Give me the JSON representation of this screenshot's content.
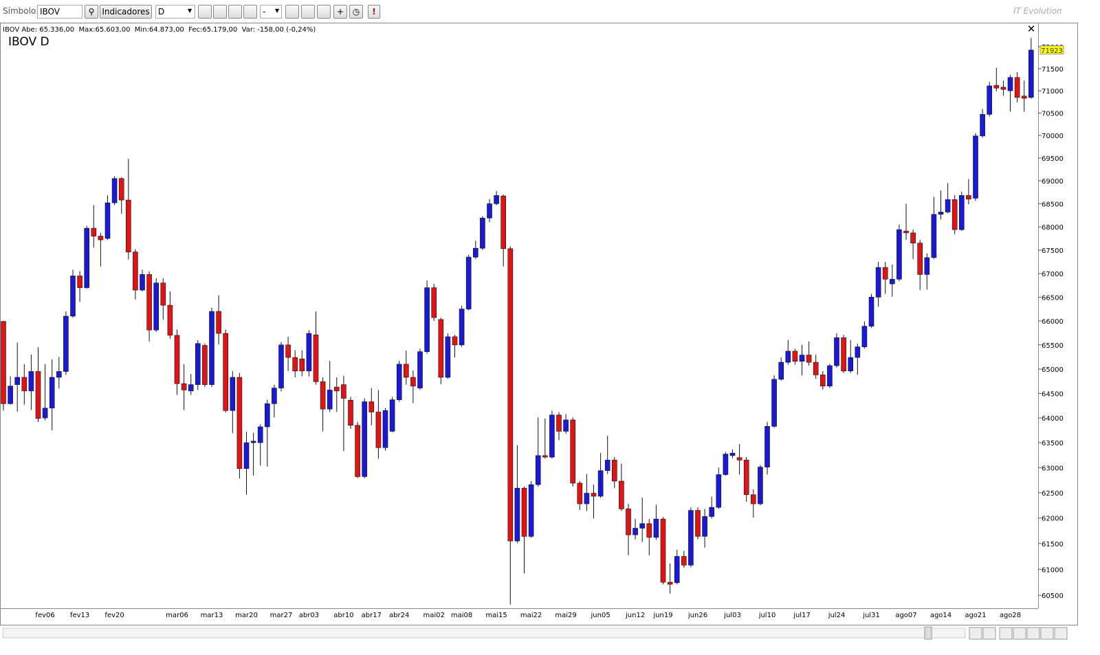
{
  "toolbar": {
    "symbol_label": "Símbolo:",
    "symbol": "IBOV",
    "indicators": "Indicadores",
    "period": "D",
    "option": "-",
    "alert": "!",
    "brand": "IT Evolution"
  },
  "chart_data": {
    "type": "candlestick",
    "title": "IBOV D",
    "info": "IBOV Abe: 65.336,00  Max:65.603,00  Min:64.873,00  Fec:65.179,00  Var: -158,00 (-0,24%)",
    "log_scale": true,
    "grid": false,
    "up_color": "#1a1ad6",
    "down_color": "#e01414",
    "ylim": [
      60250,
      72550
    ],
    "yticks": [
      60500,
      61000,
      61500,
      62000,
      62500,
      63000,
      63500,
      64000,
      64500,
      65000,
      65500,
      66000,
      66500,
      67000,
      67500,
      68000,
      68500,
      69000,
      69500,
      70000,
      70500,
      71000,
      71500,
      72000
    ],
    "categories": [
      null,
      null,
      null,
      null,
      null,
      null,
      "fev06",
      null,
      null,
      null,
      null,
      "fev13",
      null,
      null,
      null,
      null,
      "fev20",
      null,
      null,
      null,
      null,
      null,
      null,
      null,
      null,
      "mar06",
      null,
      null,
      null,
      null,
      "mar13",
      null,
      null,
      null,
      null,
      "mar20",
      null,
      null,
      null,
      null,
      "mar27",
      null,
      null,
      null,
      "abr03",
      null,
      null,
      null,
      null,
      "abr10",
      null,
      null,
      null,
      "abr17",
      null,
      null,
      null,
      "abr24",
      null,
      null,
      null,
      null,
      "mai02",
      null,
      null,
      null,
      "mai08",
      null,
      null,
      null,
      null,
      "mai15",
      null,
      null,
      null,
      null,
      "mai22",
      null,
      null,
      null,
      null,
      "mai29",
      null,
      null,
      null,
      null,
      "jun05",
      null,
      null,
      null,
      null,
      "jun12",
      null,
      null,
      null,
      "jun19",
      null,
      null,
      null,
      null,
      "jun26",
      null,
      null,
      null,
      null,
      "jul03",
      null,
      null,
      null,
      null,
      "jul10",
      null,
      null,
      null,
      null,
      "jul17",
      null,
      null,
      null,
      null,
      "jul24",
      null,
      null,
      null,
      null,
      "jul31",
      null,
      null,
      null,
      null,
      "ago07",
      null,
      null,
      null,
      null,
      "ago14",
      null,
      null,
      null,
      null,
      "ago21",
      null,
      null,
      null,
      null,
      "ago28",
      null,
      null,
      null
    ],
    "open": [
      65990,
      64290,
      64680,
      64830,
      64550,
      64950,
      64000,
      64200,
      64830,
      64950,
      66100,
      66950,
      66700,
      67970,
      67800,
      67750,
      68520,
      69050,
      68580,
      67460,
      66650,
      66980,
      65810,
      66800,
      66330,
      65700,
      64700,
      64550,
      64680,
      65490,
      64680,
      66200,
      65740,
      64150,
      64830,
      62980,
      63500,
      63500,
      63820,
      64290,
      64610,
      65500,
      65240,
      65210,
      64960,
      65710,
      64740,
      64180,
      64630,
      64680,
      64360,
      63850,
      62820,
      64330,
      64120,
      63400,
      63730,
      64370,
      65100,
      64830,
      64610,
      65360,
      66700,
      66030,
      64830,
      65670,
      65500,
      66250,
      67350,
      67540,
      68190,
      68500,
      68670,
      67530,
      61550,
      62590,
      61640,
      62660,
      63240,
      63210,
      64060,
      63730,
      63960,
      62690,
      62280,
      62490,
      62430,
      62940,
      63150,
      62730,
      62180,
      61670,
      61800,
      61890,
      61620,
      61980,
      60750,
      60740,
      61250,
      61080,
      62150,
      61640,
      62030,
      62210,
      62860,
      63240,
      63200,
      63150,
      62460,
      62280,
      63010,
      63830,
      64790,
      65140,
      65370,
      65160,
      65290,
      65140,
      64880,
      64650,
      65070,
      65650,
      64960,
      65240,
      65460,
      65890,
      66500,
      67130,
      66780,
      66880,
      67910,
      67870,
      67650,
      66980,
      67340,
      68270,
      68320,
      68590,
      67940,
      68680,
      68620,
      69990,
      70470,
      71120,
      71080,
      71000,
      71300,
      70880,
      70850
    ],
    "high": [
      66000,
      64850,
      65550,
      65100,
      65300,
      65450,
      65100,
      65200,
      65250,
      66200,
      67080,
      67050,
      68020,
      68470,
      67870,
      68680,
      69100,
      69080,
      69480,
      67520,
      67080,
      67050,
      66900,
      66900,
      66620,
      65820,
      65100,
      64900,
      65600,
      65530,
      66280,
      66540,
      65820,
      64960,
      64920,
      63720,
      63700,
      63870,
      64370,
      64680,
      65560,
      65670,
      65390,
      65390,
      65810,
      66200,
      64830,
      65170,
      64830,
      64860,
      64430,
      63920,
      64400,
      64610,
      64570,
      64200,
      64430,
      65170,
      65380,
      64970,
      65420,
      66850,
      66780,
      66070,
      65740,
      65710,
      66320,
      67400,
      67700,
      68230,
      68600,
      68780,
      68700,
      67580,
      63450,
      62620,
      62730,
      64010,
      63990,
      64150,
      64120,
      64080,
      64010,
      62730,
      62870,
      62660,
      63290,
      63640,
      63210,
      63080,
      62280,
      61980,
      62400,
      61980,
      62260,
      62020,
      61110,
      61380,
      61360,
      62210,
      62210,
      62180,
      62420,
      63000,
      63310,
      63360,
      63470,
      63210,
      62570,
      63050,
      63920,
      64870,
      65240,
      65600,
      65420,
      65500,
      65570,
      65300,
      64960,
      65110,
      65740,
      65710,
      65600,
      65530,
      65990,
      66570,
      67250,
      67250,
      67190,
      68050,
      68500,
      67940,
      67720,
      67430,
      68650,
      68790,
      68950,
      68690,
      68760,
      69040,
      70050,
      70590,
      71200,
      71520,
      71230,
      71360,
      71420,
      71230,
      72200
    ],
    "low": [
      64150,
      64270,
      64130,
      64270,
      64160,
      63920,
      63950,
      63750,
      64600,
      64880,
      66070,
      66400,
      66680,
      67550,
      67150,
      67720,
      68470,
      68280,
      67300,
      66450,
      66620,
      65570,
      65770,
      66030,
      65630,
      64470,
      64160,
      64470,
      64570,
      64630,
      64630,
      65510,
      64110,
      63690,
      62780,
      62460,
      62840,
      63040,
      63020,
      64010,
      64540,
      64960,
      64830,
      64850,
      64850,
      64680,
      63730,
      64120,
      64120,
      63330,
      63780,
      62790,
      62790,
      63850,
      63180,
      63340,
      63710,
      64330,
      64680,
      64300,
      64570,
      65320,
      66000,
      64690,
      64800,
      65240,
      65460,
      66220,
      67310,
      67500,
      68100,
      68470,
      67150,
      60320,
      61510,
      60920,
      61610,
      62620,
      63180,
      63180,
      63550,
      63680,
      62620,
      62160,
      62140,
      61990,
      62400,
      62870,
      62590,
      62140,
      61270,
      61580,
      61530,
      61270,
      61570,
      60710,
      60530,
      60710,
      61030,
      61040,
      61580,
      61420,
      61990,
      62180,
      62840,
      63190,
      62860,
      62320,
      62010,
      62250,
      62860,
      63800,
      64760,
      65090,
      65090,
      64870,
      65070,
      64800,
      64580,
      64610,
      65030,
      64920,
      64920,
      64880,
      65420,
      65860,
      66300,
      66570,
      66510,
      66840,
      67720,
      67310,
      66650,
      66660,
      67310,
      68160,
      68290,
      67840,
      67910,
      68490,
      68560,
      69950,
      70420,
      70990,
      70890,
      70530,
      70740,
      70530,
      70820
    ],
    "close": [
      64290,
      64650,
      64830,
      64550,
      64950,
      63990,
      64200,
      64830,
      64950,
      66100,
      66950,
      66700,
      67970,
      67800,
      67720,
      68520,
      69050,
      68580,
      67460,
      66650,
      66980,
      65810,
      66800,
      66330,
      65700,
      64700,
      64570,
      64680,
      65530,
      64680,
      66200,
      65740,
      64150,
      64830,
      62980,
      63500,
      63530,
      63820,
      64290,
      64610,
      65500,
      65240,
      64960,
      64960,
      65740,
      64740,
      64180,
      64570,
      64550,
      64400,
      63850,
      62820,
      64330,
      64120,
      63400,
      64150,
      64370,
      65100,
      64830,
      64650,
      65360,
      66700,
      66070,
      64830,
      65670,
      65500,
      66250,
      67350,
      67540,
      68190,
      68500,
      68680,
      67530,
      61550,
      62590,
      61640,
      62660,
      63240,
      63210,
      64060,
      63730,
      63960,
      62690,
      62280,
      62490,
      62430,
      62940,
      63150,
      62730,
      62180,
      61670,
      61800,
      61890,
      61620,
      61980,
      60750,
      60710,
      61250,
      61080,
      62150,
      61640,
      62030,
      62210,
      62860,
      63270,
      63290,
      63150,
      62460,
      62280,
      63010,
      63830,
      64790,
      65140,
      65370,
      65160,
      65290,
      65140,
      64880,
      64650,
      65070,
      65650,
      64960,
      65240,
      65460,
      65890,
      66500,
      67130,
      66880,
      66880,
      67940,
      67870,
      67650,
      66980,
      67340,
      68270,
      68320,
      68590,
      67940,
      68680,
      68600,
      69990,
      70470,
      71110,
      71060,
      71030,
      71300,
      70850,
      70830,
      71923
    ]
  }
}
